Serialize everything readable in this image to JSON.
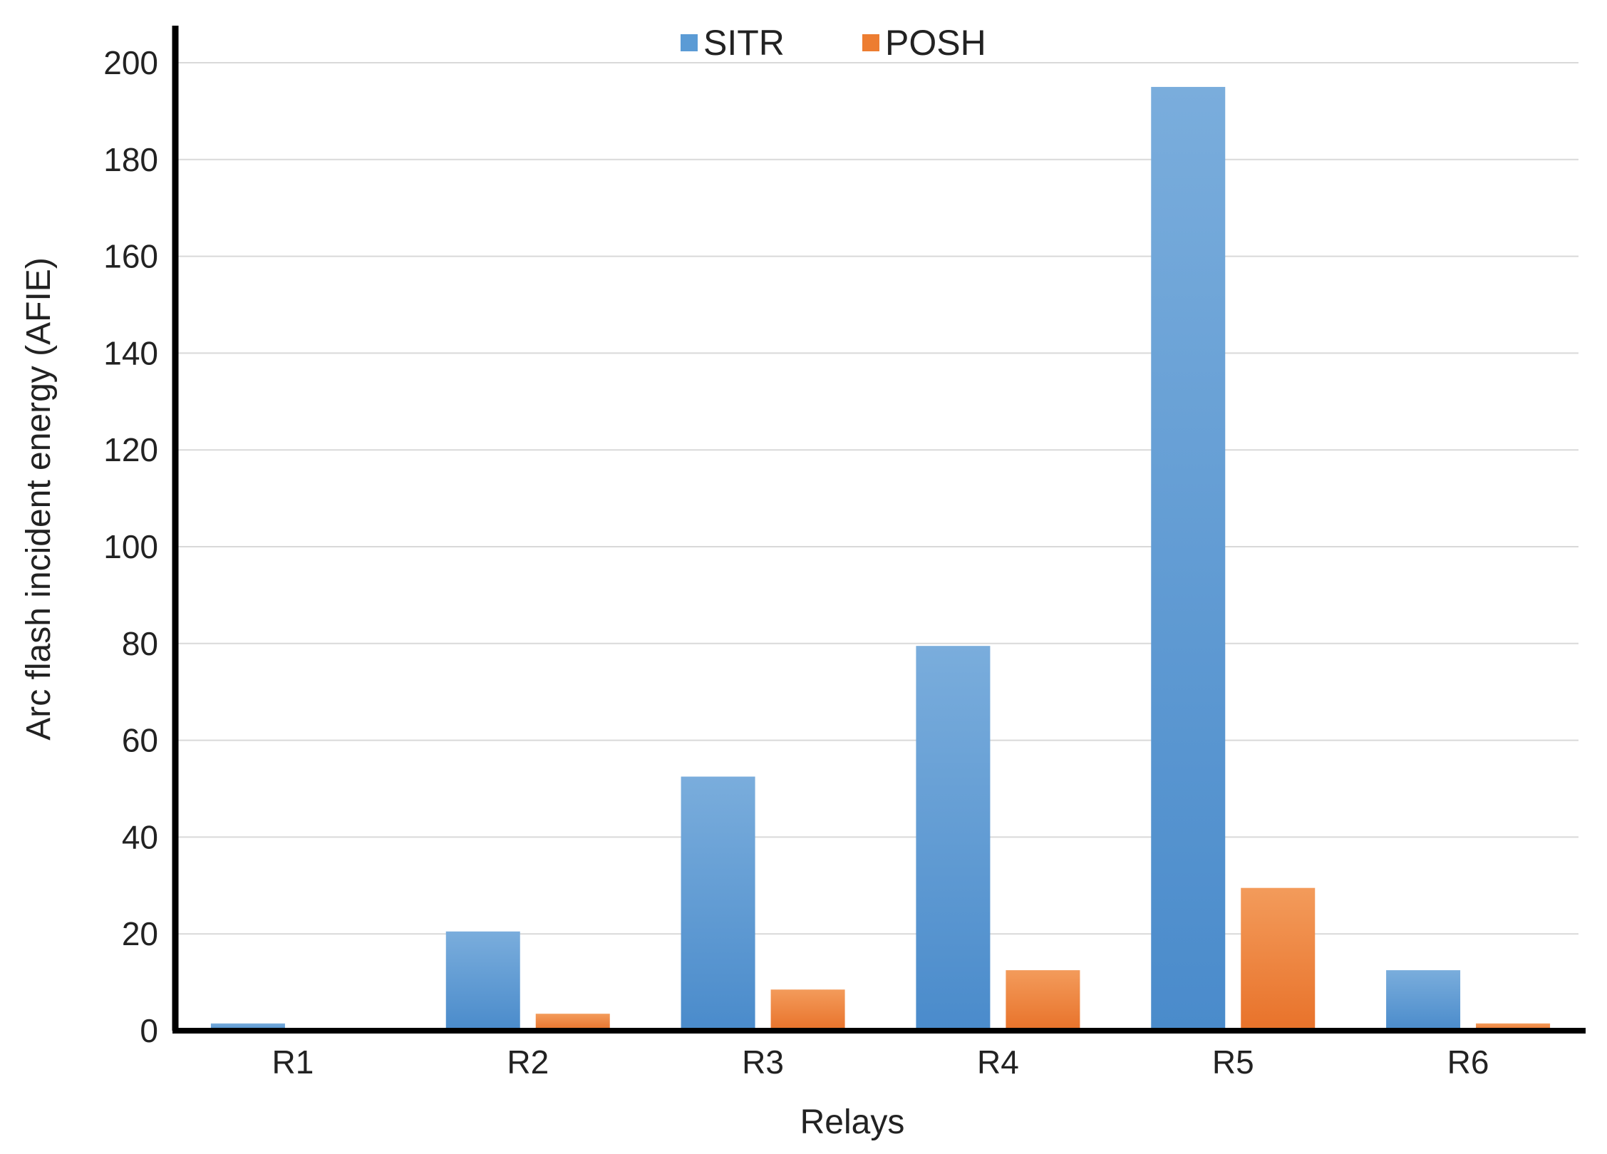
{
  "chart_data": {
    "type": "bar",
    "categories": [
      "R1",
      "R2",
      "R3",
      "R4",
      "R5",
      "R6"
    ],
    "series": [
      {
        "name": "SITR",
        "color": "#5b9bd5",
        "values": [
          1.5,
          20.5,
          52.5,
          79.5,
          195,
          12.5
        ]
      },
      {
        "name": "POSH",
        "color": "#ed7d31",
        "values": [
          0,
          3.5,
          8.5,
          12.5,
          29.5,
          1.5
        ]
      }
    ],
    "xlabel": "Relays",
    "ylabel": "Arc flash incident energy (AFIE)",
    "ylim": [
      0,
      200
    ],
    "yticks": [
      0,
      20,
      40,
      60,
      80,
      100,
      120,
      140,
      160,
      180,
      200
    ],
    "grid": true,
    "legend_position": "top-center"
  }
}
